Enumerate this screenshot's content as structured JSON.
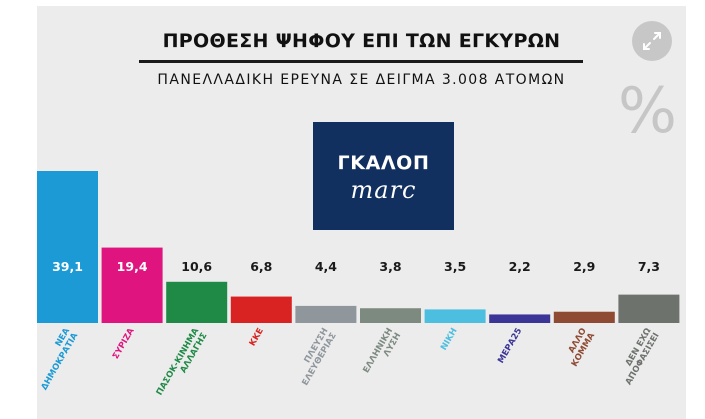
{
  "chart_data": {
    "type": "bar",
    "title": "ΠΡΟΘΕΣΗ ΨΗΦΟΥ ΕΠΙ ΤΩΝ ΕΓΚΥΡΩΝ",
    "subtitle": "ΠΑΝΕΛΛΑΔΙΚΗ ΕΡΕΥΝΑ ΣΕ ΔΕΙΓΜΑ 3.008 ΑΤΟΜΩΝ",
    "unit_symbol": "%",
    "categories": [
      [
        "ΝΕΑ",
        "ΔΗΜΟΚΡΑΤΙΑ"
      ],
      [
        "ΣΥΡΙΖΑ"
      ],
      [
        "ΠΑΣΟΚ-ΚΙΝΗΜΑ",
        "ΑΛΛΑΓΗΣ"
      ],
      [
        "ΚΚΕ"
      ],
      [
        "ΠΛΕΥΣΗ",
        "ΕΛΕΥΘΕΡΙΑΣ"
      ],
      [
        "ΕΛΛΗΝΙΚΗ",
        "ΛΥΣΗ"
      ],
      [
        "ΝΙΚΗ"
      ],
      [
        "ΜΕΡΑ25"
      ],
      [
        "ΑΛΛΟ",
        "ΚΟΜΜΑ"
      ],
      [
        "ΔΕΝ ΕΧΩ",
        "ΑΠΟΦΑΣΙΣΕΙ"
      ]
    ],
    "values": [
      39.1,
      19.4,
      10.6,
      6.8,
      4.4,
      3.8,
      3.5,
      2.2,
      2.9,
      7.3
    ],
    "value_labels": [
      "39,1",
      "19,4",
      "10,6",
      "6,8",
      "4,4",
      "3,8",
      "3,5",
      "2,2",
      "2,9",
      "7,3"
    ],
    "colors": [
      "#1b9ad6",
      "#e0147f",
      "#1f8a45",
      "#d92323",
      "#8f979d",
      "#7d8a80",
      "#4cbfe0",
      "#3a3596",
      "#8f4a33",
      "#6d726d"
    ],
    "ylim": [
      0,
      39.1
    ],
    "xlabel": "",
    "ylabel": "",
    "grid": false,
    "legend": "none"
  },
  "logo": {
    "line1": "ΓΚΑΛΟΠ",
    "line2": "marc",
    "background": "#12305f"
  },
  "icons": {
    "expand": "expand-arrows-icon",
    "percent": "percent-symbol"
  }
}
